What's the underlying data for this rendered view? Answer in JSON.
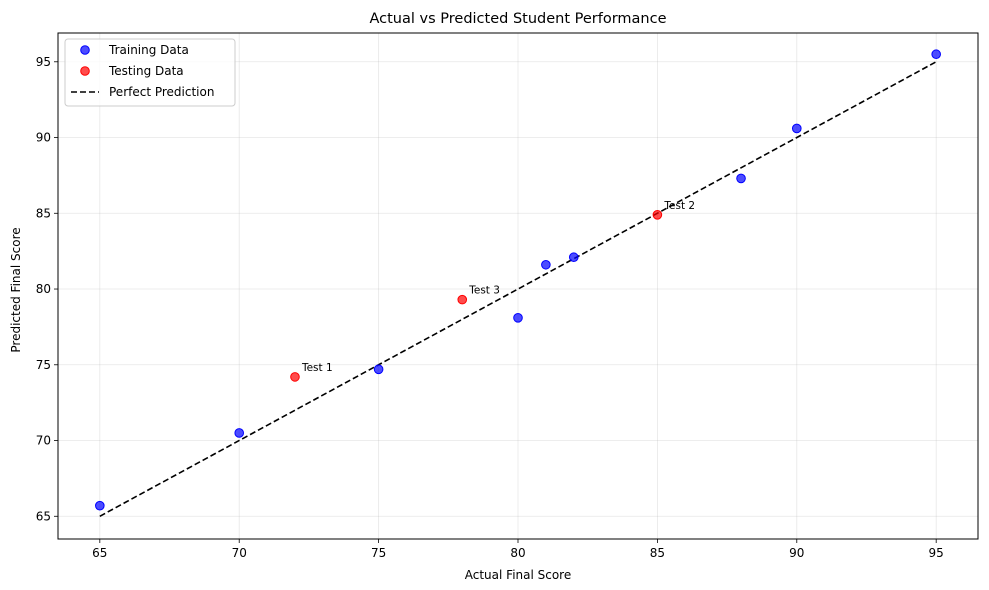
{
  "chart_data": {
    "type": "scatter",
    "title": "Actual vs Predicted Student Performance",
    "xlabel": "Actual Final Score",
    "ylabel": "Predicted Final Score",
    "xlim": [
      63.5,
      96.5
    ],
    "ylim": [
      63.5,
      96.9
    ],
    "xticks": [
      65,
      70,
      75,
      80,
      85,
      90,
      95
    ],
    "yticks": [
      65,
      70,
      75,
      80,
      85,
      90,
      95
    ],
    "grid": true,
    "legend_position": "top-left",
    "series": [
      {
        "name": "Training Data",
        "kind": "scatter",
        "color": "#0000ff",
        "points": [
          {
            "x": 65,
            "y": 65.7
          },
          {
            "x": 70,
            "y": 70.5
          },
          {
            "x": 75,
            "y": 74.7
          },
          {
            "x": 80,
            "y": 78.1
          },
          {
            "x": 81,
            "y": 81.6
          },
          {
            "x": 82,
            "y": 82.1
          },
          {
            "x": 88,
            "y": 87.3
          },
          {
            "x": 90,
            "y": 90.6
          },
          {
            "x": 95,
            "y": 95.5
          }
        ]
      },
      {
        "name": "Testing Data",
        "kind": "scatter",
        "color": "#ff0000",
        "points": [
          {
            "x": 72,
            "y": 74.2,
            "label": "Test 1"
          },
          {
            "x": 78,
            "y": 79.3,
            "label": "Test 3"
          },
          {
            "x": 85,
            "y": 84.9,
            "label": "Test 2"
          }
        ]
      },
      {
        "name": "Perfect Prediction",
        "kind": "line",
        "style": "dashed",
        "color": "#000000",
        "points": [
          {
            "x": 65,
            "y": 65
          },
          {
            "x": 95,
            "y": 95
          }
        ]
      }
    ]
  }
}
